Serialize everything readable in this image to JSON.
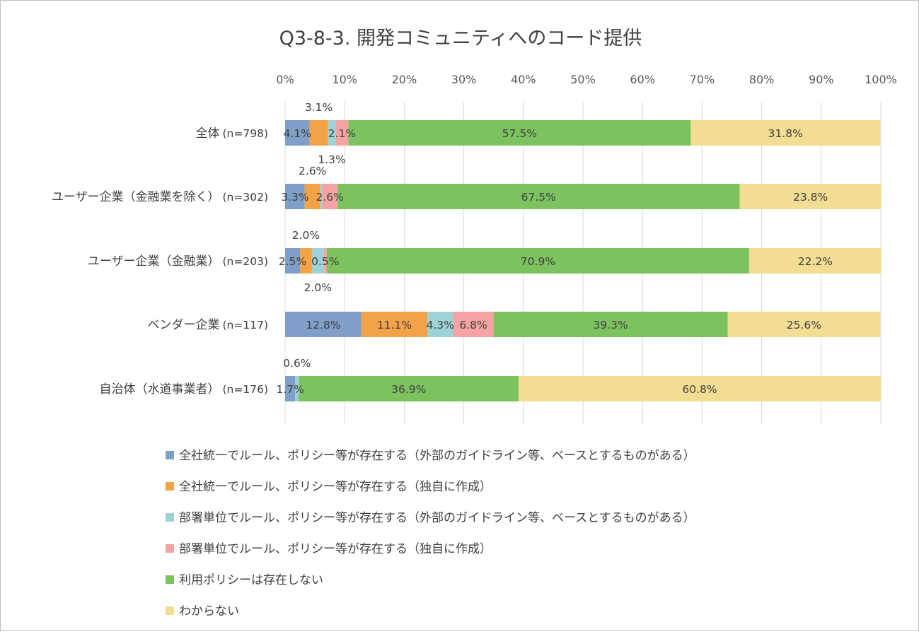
{
  "chart_data": {
    "type": "bar",
    "orientation": "horizontal",
    "stacked": "percent",
    "title": "Q3-8-3. 開発コミュニティへのコード提供",
    "xlim": [
      0,
      100
    ],
    "x_ticks": [
      "0%",
      "10%",
      "20%",
      "30%",
      "40%",
      "50%",
      "60%",
      "70%",
      "80%",
      "90%",
      "100%"
    ],
    "grid": "vertical",
    "legend_position": "bottom",
    "categories": [
      {
        "name": "全体",
        "n": "(n=798)"
      },
      {
        "name": "ユーザー企業（金融業を除く）",
        "n": "(n=302)"
      },
      {
        "name": "ユーザー企業（金融業）",
        "n": "(n=203)"
      },
      {
        "name": "ベンダー企業",
        "n": "(n=117)"
      },
      {
        "name": "自治体（水道事業者）",
        "n": "(n=176)"
      }
    ],
    "series": [
      {
        "name": "全社統一でルール、ポリシー等が存在する（外部のガイドライン等、ベースとするものがある）",
        "color": "#7f9fc8",
        "values": [
          4.1,
          3.3,
          2.5,
          12.8,
          1.7
        ],
        "labels": [
          "4.1%",
          "3.3%",
          "2.5%",
          "12.8%",
          "1.7%"
        ]
      },
      {
        "name": "全社統一でルール、ポリシー等が存在する（独自に作成）",
        "color": "#f2a347",
        "values": [
          3.1,
          2.6,
          2.0,
          11.1,
          0.0
        ],
        "labels": [
          "3.1%",
          "2.6%",
          "2.0%",
          "11.1%",
          ""
        ]
      },
      {
        "name": "部署単位でルール、ポリシー等が存在する（外部のガイドライン等、ベースとするものがある）",
        "color": "#9dd3d6",
        "values": [
          1.3,
          0.3,
          2.0,
          4.3,
          0.6
        ],
        "labels": [
          "1.3%",
          "",
          "2.0%",
          "4.3%",
          "0.6%"
        ]
      },
      {
        "name": "部署単位でルール、ポリシー等が存在する（独自に作成）",
        "color": "#f5a3a3",
        "values": [
          2.1,
          2.6,
          0.5,
          6.8,
          0.0
        ],
        "labels": [
          "2.1%",
          "2.6%",
          "0.5%",
          "6.8%",
          ""
        ]
      },
      {
        "name": "利用ポリシーは存在しない",
        "color": "#7cc35f",
        "values": [
          57.5,
          67.5,
          70.9,
          39.3,
          36.9
        ],
        "labels": [
          "57.5%",
          "67.5%",
          "70.9%",
          "39.3%",
          "36.9%"
        ]
      },
      {
        "name": "わからない",
        "color": "#f2dd92",
        "values": [
          31.8,
          23.8,
          22.2,
          25.6,
          60.8
        ],
        "labels": [
          "31.8%",
          "23.8%",
          "22.2%",
          "25.6%",
          "60.8%"
        ]
      }
    ]
  }
}
